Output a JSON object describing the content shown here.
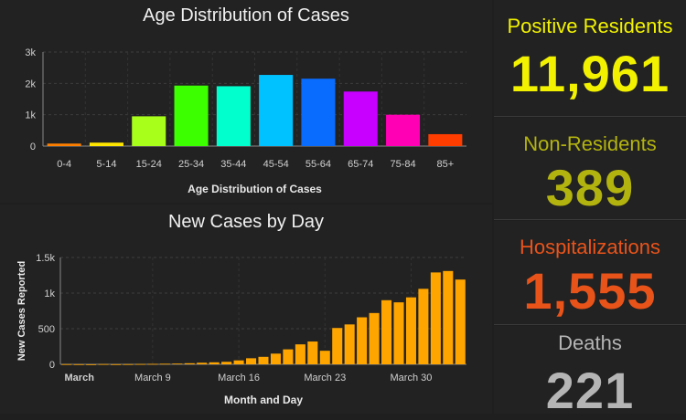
{
  "age_panel": {
    "title": "Age Distribution of Cases"
  },
  "daily_panel": {
    "title": "New Cases by Day"
  },
  "stats": [
    {
      "label": "Positive Residents",
      "value": "11,961",
      "color": "#f2f200"
    },
    {
      "label": "Non-Residents",
      "value": "389",
      "color": "#b3b30f"
    },
    {
      "label": "Hospitalizations",
      "value": "1,555",
      "color": "#e8531a"
    },
    {
      "label": "Deaths",
      "value": "221",
      "color": "#b5b5b5"
    }
  ],
  "chart_data": [
    {
      "type": "bar",
      "title": "",
      "xlabel": "Age Distribution of Cases",
      "ylabel": "",
      "categories": [
        "0-4",
        "5-14",
        "15-24",
        "25-34",
        "35-44",
        "45-54",
        "55-64",
        "65-74",
        "75-84",
        "85+"
      ],
      "values": [
        80,
        110,
        950,
        1930,
        1910,
        2270,
        2150,
        1740,
        1000,
        380
      ],
      "colors": [
        "#ff7f00",
        "#ffe600",
        "#a8ff1a",
        "#3cff00",
        "#00ffcc",
        "#00c2ff",
        "#0a6cff",
        "#c800ff",
        "#ff00b4",
        "#ff3d00"
      ],
      "ylim": [
        0,
        3000
      ],
      "yticks": [
        0,
        1000,
        2000,
        3000
      ],
      "ytick_labels": [
        "0",
        "1k",
        "2k",
        "3k"
      ],
      "grid": true
    },
    {
      "type": "bar",
      "title": "",
      "xlabel": "Month and Day",
      "ylabel": "New Cases Reported",
      "x_tick_labels": [
        "March",
        "March 9",
        "March 16",
        "March 23",
        "March 30"
      ],
      "values": [
        2,
        1,
        0,
        3,
        1,
        2,
        4,
        6,
        8,
        10,
        15,
        22,
        28,
        35,
        55,
        85,
        105,
        150,
        210,
        280,
        320,
        190,
        510,
        560,
        660,
        720,
        900,
        870,
        940,
        1060,
        1290,
        1310,
        1190
      ],
      "bar_color": "#ffa500",
      "ylim": [
        0,
        1500
      ],
      "yticks": [
        0,
        500,
        1000,
        1500
      ],
      "ytick_labels": [
        "0",
        "500",
        "1k",
        "1.5k"
      ],
      "grid": true
    }
  ]
}
